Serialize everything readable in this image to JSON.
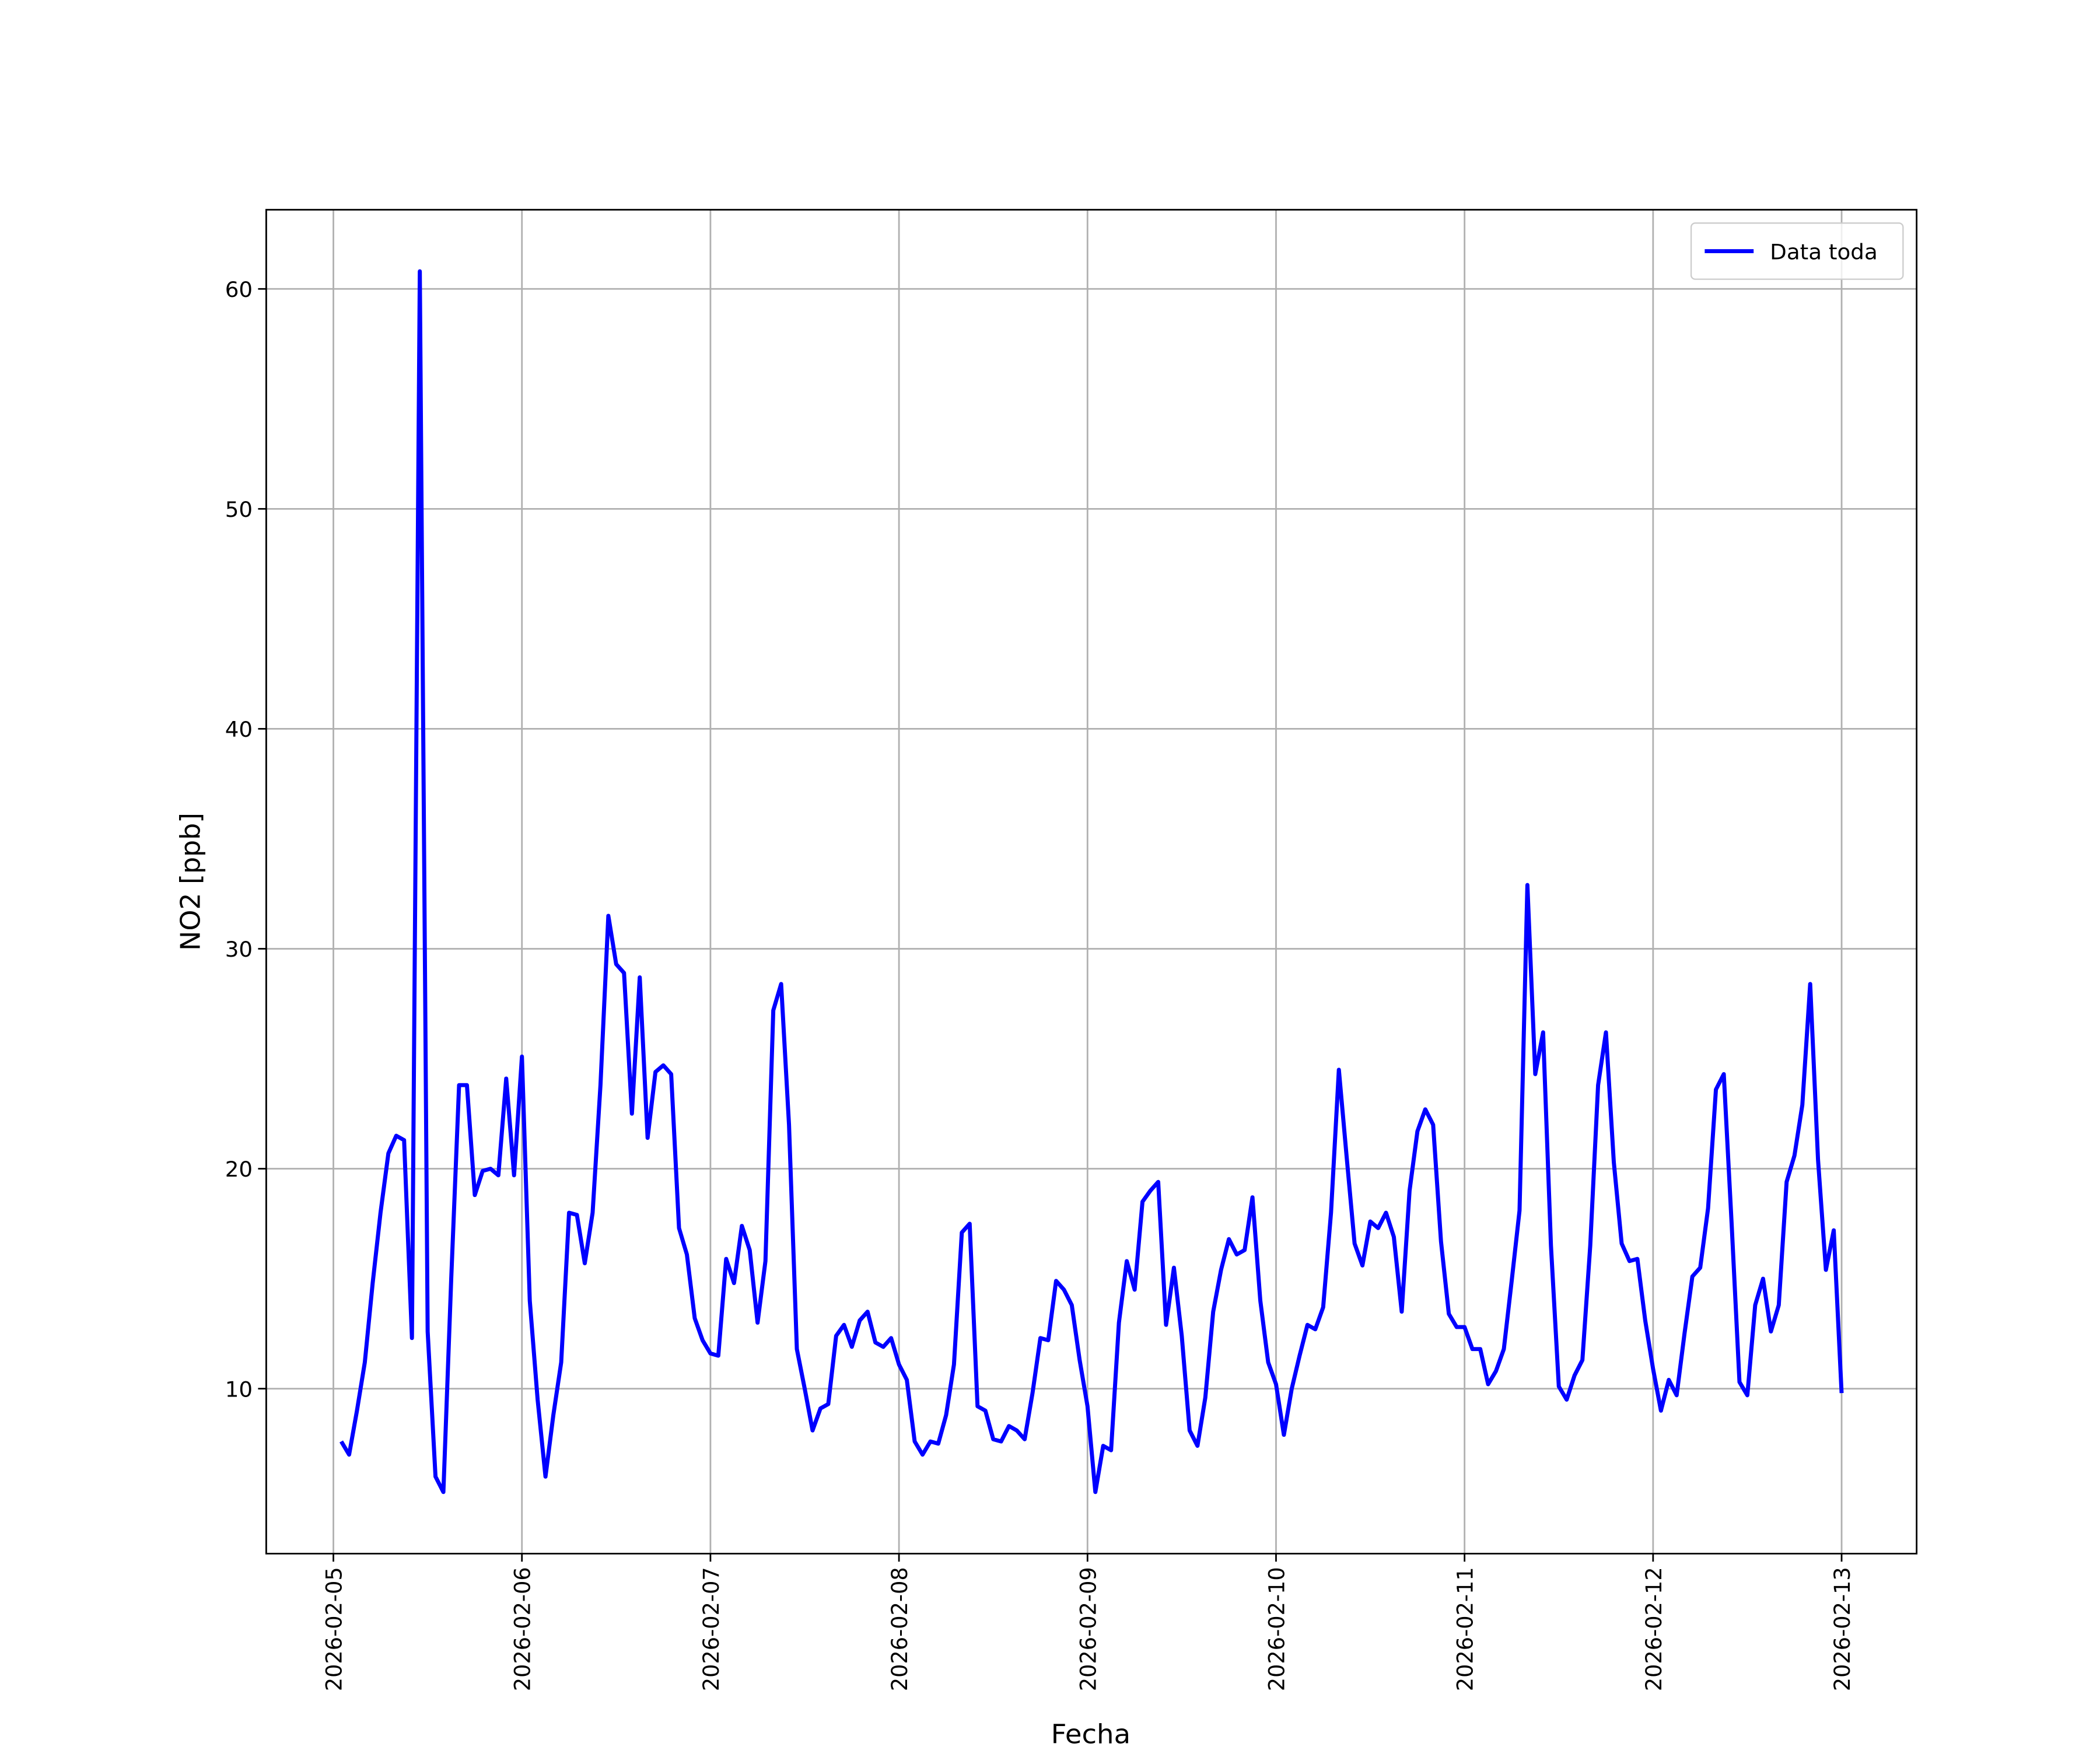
{
  "chart_data": {
    "type": "line",
    "xlabel": "Fecha",
    "ylabel": "NO2 [ppb]",
    "legend": "upper right",
    "grid": true,
    "xlim": [
      "2026-02-04 15:27",
      "2026-02-13 09:33"
    ],
    "ylim": [
      2.5,
      63.6
    ],
    "xticks": [
      "2026-02-05",
      "2026-02-06",
      "2026-02-07",
      "2026-02-08",
      "2026-02-09",
      "2026-02-10",
      "2026-02-11",
      "2026-02-12",
      "2026-02-13"
    ],
    "yticks": [
      10,
      20,
      30,
      40,
      50,
      60
    ],
    "x": [
      "2026-02-05 01:00",
      "2026-02-05 02:00",
      "2026-02-05 03:00",
      "2026-02-05 04:00",
      "2026-02-05 05:00",
      "2026-02-05 06:00",
      "2026-02-05 07:00",
      "2026-02-05 08:00",
      "2026-02-05 09:00",
      "2026-02-05 10:00",
      "2026-02-05 11:00",
      "2026-02-05 12:00",
      "2026-02-05 13:00",
      "2026-02-05 14:00",
      "2026-02-05 15:00",
      "2026-02-05 16:00",
      "2026-02-05 17:00",
      "2026-02-05 18:00",
      "2026-02-05 19:00",
      "2026-02-05 20:00",
      "2026-02-05 21:00",
      "2026-02-05 22:00",
      "2026-02-05 23:00",
      "2026-02-06 00:00",
      "2026-02-06 01:00",
      "2026-02-06 02:00",
      "2026-02-06 03:00",
      "2026-02-06 04:00",
      "2026-02-06 05:00",
      "2026-02-06 06:00",
      "2026-02-06 07:00",
      "2026-02-06 08:00",
      "2026-02-06 09:00",
      "2026-02-06 10:00",
      "2026-02-06 11:00",
      "2026-02-06 12:00",
      "2026-02-06 13:00",
      "2026-02-06 14:00",
      "2026-02-06 15:00",
      "2026-02-06 16:00",
      "2026-02-06 17:00",
      "2026-02-06 18:00",
      "2026-02-06 19:00",
      "2026-02-06 20:00",
      "2026-02-06 21:00",
      "2026-02-06 22:00",
      "2026-02-06 23:00",
      "2026-02-07 00:00",
      "2026-02-07 01:00",
      "2026-02-07 02:00",
      "2026-02-07 03:00",
      "2026-02-07 04:00",
      "2026-02-07 05:00",
      "2026-02-07 06:00",
      "2026-02-07 07:00",
      "2026-02-07 08:00",
      "2026-02-07 09:00",
      "2026-02-07 10:00",
      "2026-02-07 11:00",
      "2026-02-07 12:00",
      "2026-02-07 13:00",
      "2026-02-07 14:00",
      "2026-02-07 15:00",
      "2026-02-07 16:00",
      "2026-02-07 17:00",
      "2026-02-07 18:00",
      "2026-02-07 19:00",
      "2026-02-07 20:00",
      "2026-02-07 21:00",
      "2026-02-07 22:00",
      "2026-02-07 23:00",
      "2026-02-08 00:00",
      "2026-02-08 01:00",
      "2026-02-08 02:00",
      "2026-02-08 03:00",
      "2026-02-08 04:00",
      "2026-02-08 05:00",
      "2026-02-08 06:00",
      "2026-02-08 07:00",
      "2026-02-08 08:00",
      "2026-02-08 09:00",
      "2026-02-08 10:00",
      "2026-02-08 11:00",
      "2026-02-08 12:00",
      "2026-02-08 13:00",
      "2026-02-08 14:00",
      "2026-02-08 15:00",
      "2026-02-08 16:00",
      "2026-02-08 17:00",
      "2026-02-08 18:00",
      "2026-02-08 19:00",
      "2026-02-08 20:00",
      "2026-02-08 21:00",
      "2026-02-08 22:00",
      "2026-02-08 23:00",
      "2026-02-09 00:00",
      "2026-02-09 01:00",
      "2026-02-09 02:00",
      "2026-02-09 03:00",
      "2026-02-09 04:00",
      "2026-02-09 05:00",
      "2026-02-09 06:00",
      "2026-02-09 07:00",
      "2026-02-09 08:00",
      "2026-02-09 09:00",
      "2026-02-09 10:00",
      "2026-02-09 11:00",
      "2026-02-09 12:00",
      "2026-02-09 13:00",
      "2026-02-09 14:00",
      "2026-02-09 15:00",
      "2026-02-09 16:00",
      "2026-02-09 17:00",
      "2026-02-09 18:00",
      "2026-02-09 19:00",
      "2026-02-09 20:00",
      "2026-02-09 21:00",
      "2026-02-09 22:00",
      "2026-02-09 23:00",
      "2026-02-10 00:00",
      "2026-02-10 01:00",
      "2026-02-10 02:00",
      "2026-02-10 03:00",
      "2026-02-10 04:00",
      "2026-02-10 05:00",
      "2026-02-10 06:00",
      "2026-02-10 07:00",
      "2026-02-10 08:00",
      "2026-02-10 09:00",
      "2026-02-10 10:00",
      "2026-02-10 11:00",
      "2026-02-10 12:00",
      "2026-02-10 13:00",
      "2026-02-10 14:00",
      "2026-02-10 15:00",
      "2026-02-10 16:00",
      "2026-02-10 17:00",
      "2026-02-10 18:00",
      "2026-02-10 19:00",
      "2026-02-10 20:00",
      "2026-02-10 21:00",
      "2026-02-10 22:00",
      "2026-02-10 23:00",
      "2026-02-11 00:00",
      "2026-02-11 01:00",
      "2026-02-11 02:00",
      "2026-02-11 03:00",
      "2026-02-11 04:00",
      "2026-02-11 05:00",
      "2026-02-11 06:00",
      "2026-02-11 07:00",
      "2026-02-11 08:00",
      "2026-02-11 09:00",
      "2026-02-11 10:00",
      "2026-02-11 11:00",
      "2026-02-11 12:00",
      "2026-02-11 13:00",
      "2026-02-11 14:00",
      "2026-02-11 15:00",
      "2026-02-11 16:00",
      "2026-02-11 17:00",
      "2026-02-11 18:00",
      "2026-02-11 19:00",
      "2026-02-11 20:00",
      "2026-02-11 21:00",
      "2026-02-11 22:00",
      "2026-02-11 23:00",
      "2026-02-12 00:00",
      "2026-02-12 01:00",
      "2026-02-12 02:00",
      "2026-02-12 03:00",
      "2026-02-12 04:00",
      "2026-02-12 05:00",
      "2026-02-12 06:00",
      "2026-02-12 07:00",
      "2026-02-12 08:00",
      "2026-02-12 09:00",
      "2026-02-12 10:00",
      "2026-02-12 11:00",
      "2026-02-12 12:00",
      "2026-02-12 13:00",
      "2026-02-12 14:00",
      "2026-02-12 15:00",
      "2026-02-12 16:00",
      "2026-02-12 17:00",
      "2026-02-12 18:00",
      "2026-02-12 19:00",
      "2026-02-12 20:00",
      "2026-02-12 21:00",
      "2026-02-12 22:00",
      "2026-02-12 23:00",
      "2026-02-13 00:00"
    ],
    "series": [
      {
        "name": "Data toda",
        "color": "#0000ff",
        "values": [
          7.6,
          7.0,
          9.0,
          11.2,
          14.8,
          18.0,
          20.7,
          21.5,
          21.3,
          12.3,
          60.8,
          12.6,
          6.0,
          5.3,
          15.0,
          23.8,
          23.8,
          18.8,
          19.9,
          20.0,
          19.7,
          24.1,
          19.7,
          25.1,
          14.0,
          9.5,
          6.0,
          8.8,
          11.2,
          18.0,
          17.9,
          15.7,
          18.0,
          23.8,
          31.5,
          29.3,
          28.9,
          22.5,
          28.7,
          21.4,
          24.4,
          24.7,
          24.3,
          17.3,
          16.1,
          13.2,
          12.2,
          11.6,
          11.5,
          15.9,
          14.8,
          17.4,
          16.3,
          13.0,
          15.8,
          27.2,
          28.4,
          22.0,
          11.8,
          10.0,
          8.1,
          9.1,
          9.3,
          12.4,
          12.9,
          11.9,
          13.1,
          13.5,
          12.1,
          11.9,
          12.3,
          11.1,
          10.4,
          7.6,
          7.0,
          7.6,
          7.5,
          8.8,
          11.1,
          17.1,
          17.5,
          9.2,
          9.0,
          7.7,
          7.6,
          8.3,
          8.1,
          7.7,
          9.8,
          12.3,
          12.2,
          14.9,
          14.5,
          13.8,
          11.3,
          9.2,
          5.3,
          7.4,
          7.2,
          13.0,
          15.8,
          14.5,
          18.5,
          19.0,
          19.4,
          12.9,
          15.5,
          12.4,
          8.1,
          7.4,
          9.6,
          13.5,
          15.4,
          16.8,
          16.1,
          16.3,
          18.7,
          14.0,
          11.2,
          10.2,
          7.9,
          10.0,
          11.5,
          12.9,
          12.7,
          13.7,
          18.0,
          24.5,
          20.5,
          16.6,
          15.6,
          17.6,
          17.3,
          18.0,
          16.9,
          13.5,
          19.0,
          21.7,
          22.7,
          22.0,
          16.7,
          13.4,
          12.8,
          12.8,
          11.8,
          11.8,
          10.2,
          10.8,
          11.8,
          14.9,
          18.1,
          32.9,
          24.3,
          26.2,
          16.5,
          10.1,
          9.5,
          10.6,
          11.3,
          16.5,
          23.8,
          26.2,
          20.3,
          16.6,
          15.8,
          15.9,
          13.1,
          10.9,
          9.0,
          10.4,
          9.7,
          12.5,
          15.1,
          15.5,
          18.2,
          23.6,
          24.3,
          17.5,
          10.3,
          9.7,
          13.8,
          15.0,
          12.6,
          13.8,
          19.4,
          20.6,
          22.9,
          28.4,
          20.4,
          15.4,
          17.2,
          9.8
        ]
      }
    ]
  }
}
